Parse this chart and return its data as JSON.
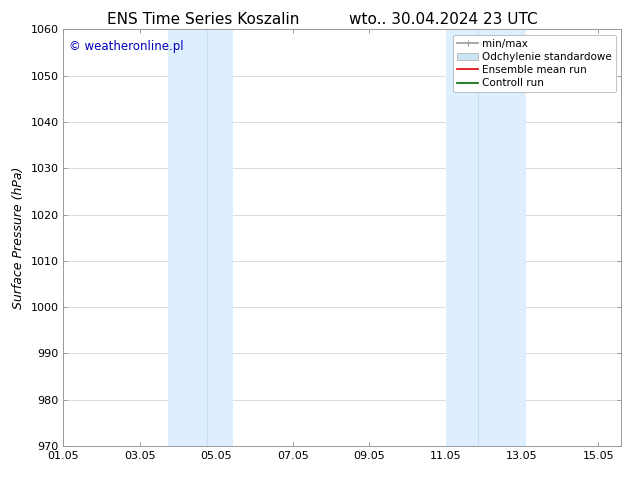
{
  "title_left": "ENS Time Series Koszalin",
  "title_right": "wto.. 30.04.2024 23 UTC",
  "ylabel": "Surface Pressure (hPa)",
  "ylim": [
    970,
    1060
  ],
  "yticks": [
    970,
    980,
    990,
    1000,
    1010,
    1020,
    1030,
    1040,
    1050,
    1060
  ],
  "xlim_start": 1.05,
  "xlim_end": 15.65,
  "xtick_labels": [
    "01.05",
    "03.05",
    "05.05",
    "07.05",
    "09.05",
    "11.05",
    "13.05",
    "15.05"
  ],
  "xtick_positions": [
    1.05,
    3.05,
    5.05,
    7.05,
    9.05,
    11.05,
    13.05,
    15.05
  ],
  "shaded_regions": [
    {
      "x_start": 3.8,
      "x_end": 4.8,
      "color": "#ddeeff"
    },
    {
      "x_start": 4.8,
      "x_end": 5.5,
      "color": "#ddeeff"
    },
    {
      "x_start": 11.05,
      "x_end": 11.9,
      "color": "#ddeeff"
    },
    {
      "x_start": 11.9,
      "x_end": 13.15,
      "color": "#ddeeff"
    }
  ],
  "watermark_text": "© weatheronline.pl",
  "watermark_color": "#0000bb",
  "bg_color": "#ffffff",
  "plot_bg_color": "#ffffff",
  "legend_items": [
    {
      "label": "min/max",
      "color": "#999999",
      "lw": 1.2
    },
    {
      "label": "Odchylenie standardowe",
      "color": "#cce5f5",
      "lw": 8
    },
    {
      "label": "Ensemble mean run",
      "color": "#dd0000",
      "lw": 1.2
    },
    {
      "label": "Controll run",
      "color": "#006600",
      "lw": 1.2
    }
  ],
  "title_fontsize": 11,
  "ylabel_fontsize": 9,
  "tick_fontsize": 8,
  "legend_fontsize": 7.5,
  "watermark_fontsize": 8.5
}
